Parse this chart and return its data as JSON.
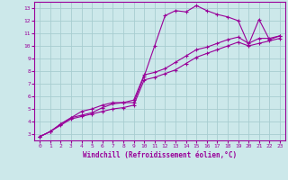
{
  "xlabel": "Windchill (Refroidissement éolien,°C)",
  "bg_color": "#cce8ea",
  "line_color": "#990099",
  "grid_color": "#b0d8dc",
  "xlim": [
    -0.5,
    23.5
  ],
  "ylim": [
    2.5,
    13.5
  ],
  "xticks": [
    0,
    1,
    2,
    3,
    4,
    5,
    6,
    7,
    8,
    9,
    10,
    11,
    12,
    13,
    14,
    15,
    16,
    17,
    18,
    19,
    20,
    21,
    22,
    23
  ],
  "yticks": [
    3,
    4,
    5,
    6,
    7,
    8,
    9,
    10,
    11,
    12,
    13
  ],
  "series1_x": [
    0,
    1,
    2,
    3,
    4,
    5,
    6,
    7,
    8,
    9,
    10,
    11,
    12,
    13,
    14,
    15,
    16,
    17,
    18,
    19,
    20,
    21,
    22,
    23
  ],
  "series1_y": [
    2.8,
    3.2,
    3.8,
    4.3,
    4.8,
    5.0,
    5.3,
    5.5,
    5.5,
    5.5,
    7.6,
    10.0,
    12.4,
    12.8,
    12.7,
    13.2,
    12.8,
    12.5,
    12.3,
    12.0,
    10.1,
    12.1,
    10.5,
    10.8
  ],
  "series2_x": [
    0,
    1,
    2,
    3,
    4,
    5,
    6,
    7,
    8,
    9,
    10,
    11,
    12,
    13,
    14,
    15,
    16,
    17,
    18,
    19,
    20,
    21,
    22,
    23
  ],
  "series2_y": [
    2.8,
    3.2,
    3.8,
    4.3,
    4.5,
    4.7,
    5.1,
    5.4,
    5.5,
    5.7,
    7.7,
    7.9,
    8.2,
    8.7,
    9.2,
    9.7,
    9.9,
    10.2,
    10.5,
    10.7,
    10.2,
    10.6,
    10.6,
    10.8
  ],
  "series3_x": [
    0,
    1,
    2,
    3,
    4,
    5,
    6,
    7,
    8,
    9,
    10,
    11,
    12,
    13,
    14,
    15,
    16,
    17,
    18,
    19,
    20,
    21,
    22,
    23
  ],
  "series3_y": [
    2.8,
    3.2,
    3.7,
    4.2,
    4.4,
    4.6,
    4.8,
    5.0,
    5.1,
    5.3,
    7.3,
    7.5,
    7.8,
    8.1,
    8.6,
    9.1,
    9.4,
    9.7,
    10.0,
    10.3,
    10.0,
    10.2,
    10.4,
    10.6
  ]
}
